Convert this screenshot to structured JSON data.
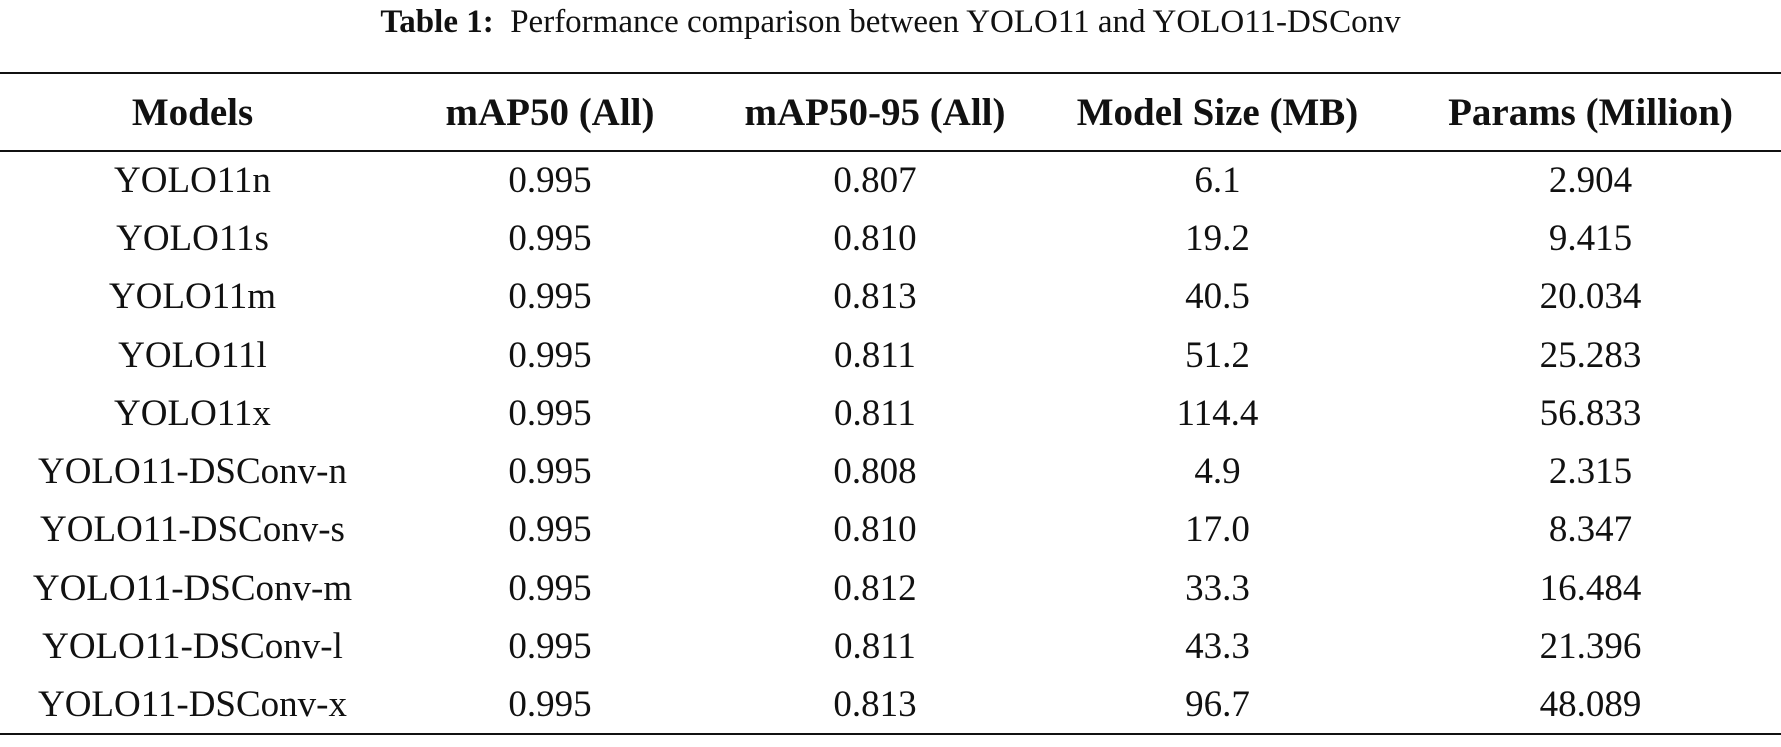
{
  "caption": {
    "label": "Table 1:",
    "text": "Performance comparison between YOLO11 and YOLO11-DSConv"
  },
  "table": {
    "headers": [
      "Models",
      "mAP50 (All)",
      "mAP50-95 (All)",
      "Model Size (MB)",
      "Params (Million)"
    ],
    "rows": [
      [
        "YOLO11n",
        "0.995",
        "0.807",
        "6.1",
        "2.904"
      ],
      [
        "YOLO11s",
        "0.995",
        "0.810",
        "19.2",
        "9.415"
      ],
      [
        "YOLO11m",
        "0.995",
        "0.813",
        "40.5",
        "20.034"
      ],
      [
        "YOLO11l",
        "0.995",
        "0.811",
        "51.2",
        "25.283"
      ],
      [
        "YOLO11x",
        "0.995",
        "0.811",
        "114.4",
        "56.833"
      ],
      [
        "YOLO11-DSConv-n",
        "0.995",
        "0.808",
        "4.9",
        "2.315"
      ],
      [
        "YOLO11-DSConv-s",
        "0.995",
        "0.810",
        "17.0",
        "8.347"
      ],
      [
        "YOLO11-DSConv-m",
        "0.995",
        "0.812",
        "33.3",
        "16.484"
      ],
      [
        "YOLO11-DSConv-l",
        "0.995",
        "0.811",
        "43.3",
        "21.396"
      ],
      [
        "YOLO11-DSConv-x",
        "0.995",
        "0.813",
        "96.7",
        "48.089"
      ]
    ]
  }
}
